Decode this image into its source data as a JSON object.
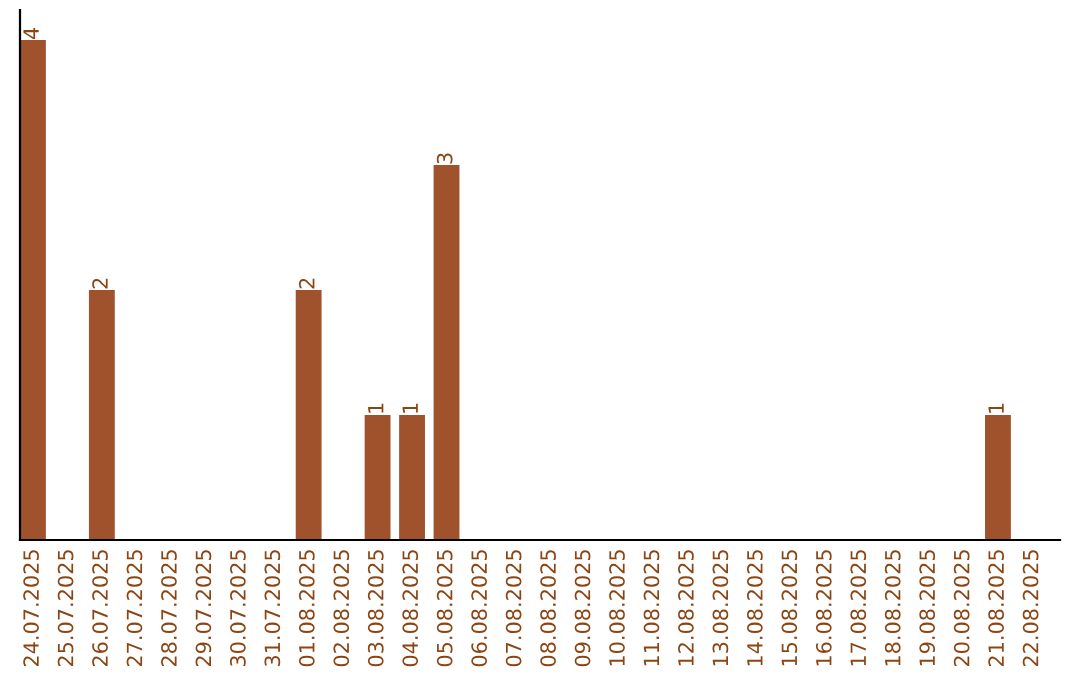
{
  "chart_data": {
    "type": "bar",
    "categories": [
      "24.07.2025",
      "25.07.2025",
      "26.07.2025",
      "27.07.2025",
      "28.07.2025",
      "29.07.2025",
      "30.07.2025",
      "31.07.2025",
      "01.08.2025",
      "02.08.2025",
      "03.08.2025",
      "04.08.2025",
      "05.08.2025",
      "06.08.2025",
      "07.08.2025",
      "08.08.2025",
      "09.08.2025",
      "10.08.2025",
      "11.08.2025",
      "12.08.2025",
      "13.08.2025",
      "14.08.2025",
      "15.08.2025",
      "16.08.2025",
      "17.08.2025",
      "18.08.2025",
      "19.08.2025",
      "20.08.2025",
      "21.08.2025",
      "22.08.2025"
    ],
    "values": [
      4,
      0,
      2,
      0,
      0,
      0,
      0,
      0,
      2,
      0,
      1,
      1,
      3,
      0,
      0,
      0,
      0,
      0,
      0,
      0,
      0,
      0,
      0,
      0,
      0,
      0,
      0,
      0,
      1,
      0
    ],
    "value_labels": [
      "4",
      null,
      "2",
      null,
      null,
      null,
      null,
      null,
      "2",
      null,
      "1",
      "1",
      "3",
      null,
      null,
      null,
      null,
      null,
      null,
      null,
      null,
      null,
      null,
      null,
      null,
      null,
      null,
      null,
      "1",
      null
    ],
    "color": "#a0522d",
    "grid": false
  }
}
